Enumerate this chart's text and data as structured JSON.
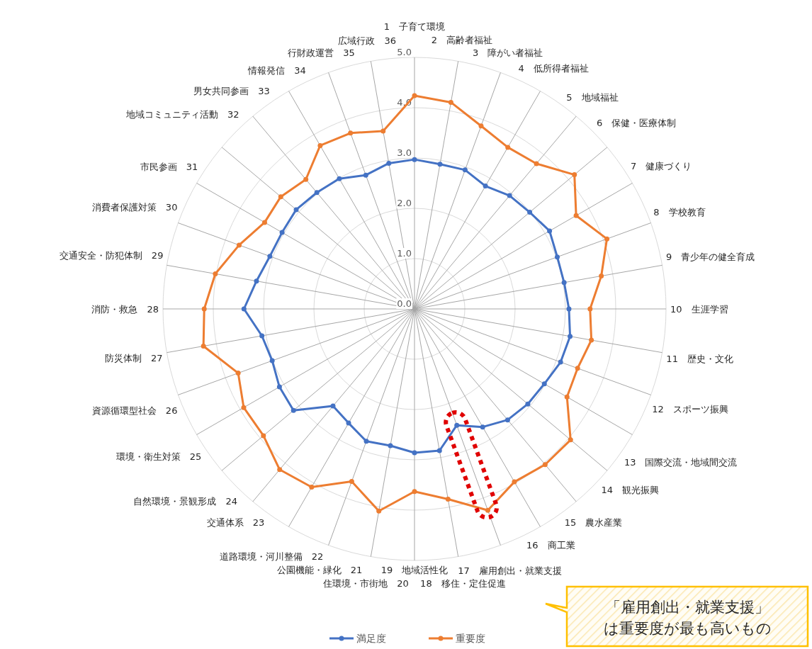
{
  "chart_data": {
    "type": "radar",
    "categories": [
      "1　子育て環境",
      "2　高齢者福祉",
      "3　障がい者福祉",
      "4　低所得者福祉",
      "5　地域福祉",
      "6　保健・医療体制",
      "7　健康づくり",
      "8　学校教育",
      "9　青少年の健全育成",
      "10　生涯学習",
      "11　歴史・文化",
      "12　スポーツ振興",
      "13　国際交流・地域間交流",
      "14　観光振興",
      "15　農水産業",
      "16　商工業",
      "17　雇用創出・就業支援",
      "18　移住・定住促進",
      "19　地域活性化",
      "住環境・市街地　20",
      "公園機能・緑化　21",
      "道路環境・河川整備　22",
      "交通体系　23",
      "自然環境・景観形成　24",
      "環境・衛生対策　25",
      "資源循環型社会　26",
      "防災体制　27",
      "消防・救急　28",
      "交通安全・防犯体制　29",
      "消費者保護対策　30",
      "市民参画　31",
      "地域コミュニティ活動　32",
      "男女共同参画　33",
      "情報発信　34",
      "行財政運営　35",
      "広域行政　36"
    ],
    "series": [
      {
        "name": "満足度",
        "color": "#4472c4",
        "values": [
          2.97,
          2.92,
          2.94,
          2.82,
          2.94,
          2.99,
          3.1,
          3.02,
          3.02,
          3.07,
          3.14,
          3.09,
          2.98,
          2.94,
          2.88,
          2.71,
          2.46,
          2.86,
          2.86,
          2.76,
          2.8,
          2.62,
          2.52,
          3.14,
          3.1,
          3.01,
          3.08,
          3.39,
          3.19,
          3.06,
          3.04,
          3.07,
          3.02,
          2.99,
          2.83,
          2.94
        ]
      },
      {
        "name": "重要度",
        "color": "#ed7d31",
        "values": [
          4.24,
          4.17,
          3.87,
          3.71,
          3.77,
          4.15,
          3.71,
          4.07,
          3.77,
          3.49,
          3.57,
          3.45,
          3.5,
          4.05,
          4.04,
          3.97,
          4.26,
          3.84,
          3.63,
          4.08,
          3.65,
          4.09,
          4.17,
          3.92,
          3.92,
          3.73,
          4.26,
          4.18,
          4.02,
          3.71,
          3.44,
          3.47,
          3.36,
          3.75,
          3.72,
          3.59
        ]
      }
    ],
    "ylim": [
      0,
      5
    ],
    "yticks": [
      {
        "value": 0,
        "label": "0.0"
      },
      {
        "value": 1,
        "label": "1.0"
      },
      {
        "value": 2,
        "label": "2.0"
      },
      {
        "value": 3,
        "label": "3.0"
      },
      {
        "value": 4,
        "label": "4.0"
      },
      {
        "value": 5,
        "label": "5.0"
      }
    ],
    "grid": true,
    "legend": "bottom",
    "marker": "circle",
    "annotations": [
      "「雇用創出・就業支援」は重要度が最も高いもの"
    ]
  }
}
